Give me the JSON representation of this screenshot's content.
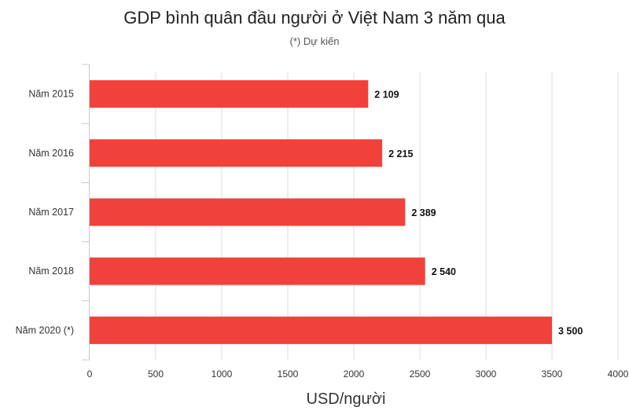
{
  "chart_data": {
    "type": "bar",
    "orientation": "horizontal",
    "title": "GDP bình quân đầu người ở Việt Nam 3 năm qua",
    "subtitle": "(*) Dự kiến",
    "categories": [
      "Năm 2015",
      "Năm 2016",
      "Năm 2017",
      "Năm 2018",
      "Năm 2020 (*)"
    ],
    "values": [
      2109,
      2215,
      2389,
      2540,
      3500
    ],
    "value_labels": [
      "2 109",
      "2 215",
      "2 389",
      "2 540",
      "3 500"
    ],
    "xlabel": "USD/người",
    "ylabel": "",
    "xlim": [
      0,
      4000
    ],
    "xticks": [
      0,
      500,
      1000,
      1500,
      2000,
      2500,
      3000,
      3500,
      4000
    ],
    "grid": "vertical",
    "bar_color": "#f0423a",
    "grid_color": "#dddddd"
  }
}
